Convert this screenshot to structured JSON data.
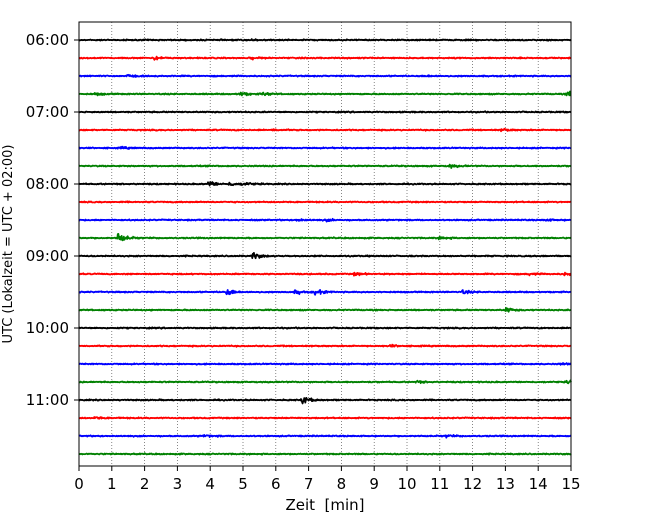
{
  "chart_data": {
    "type": "line",
    "subtype": "helicorder",
    "xlabel": "Zeit  [min]",
    "ylabel": "UTC (Lokalzeit = UTC + 02:00)",
    "xlim": [
      0,
      15
    ],
    "x_ticks": [
      "0",
      "1",
      "2",
      "3",
      "4",
      "5",
      "6",
      "7",
      "8",
      "9",
      "10",
      "11",
      "12",
      "13",
      "14",
      "15"
    ],
    "y_tick_labels": [
      "06:00",
      "07:00",
      "08:00",
      "09:00",
      "10:00",
      "11:00"
    ],
    "start_time": "06:00",
    "trace_interval_min": 15,
    "trace_count": 24,
    "grid": "vertical dotted at each minute",
    "trace_colors": [
      "#000000",
      "#ff0000",
      "#0000ff",
      "#008000"
    ],
    "traces": [
      {
        "start": "06:00",
        "events": [
          {
            "t": 5.3,
            "amp": 0.12
          }
        ]
      },
      {
        "start": "06:15",
        "events": [
          {
            "t": 2.3,
            "amp": 0.3
          },
          {
            "t": 5.2,
            "amp": 0.2
          }
        ]
      },
      {
        "start": "06:30",
        "events": [
          {
            "t": 1.5,
            "amp": 0.18
          },
          {
            "t": 10.6,
            "amp": 0.15
          }
        ]
      },
      {
        "start": "06:45",
        "events": [
          {
            "t": 0.5,
            "amp": 0.2
          },
          {
            "t": 4.9,
            "amp": 0.45
          },
          {
            "t": 5.6,
            "amp": 0.3
          },
          {
            "t": 14.9,
            "amp": 0.55
          }
        ]
      },
      {
        "start": "07:00",
        "events": []
      },
      {
        "start": "07:15",
        "events": [
          {
            "t": 5.9,
            "amp": 0.15
          },
          {
            "t": 12.9,
            "amp": 0.25
          }
        ]
      },
      {
        "start": "07:30",
        "events": [
          {
            "t": 1.3,
            "amp": 0.15
          }
        ]
      },
      {
        "start": "07:45",
        "events": [
          {
            "t": 11.3,
            "amp": 0.3
          }
        ]
      },
      {
        "start": "08:00",
        "events": [
          {
            "t": 3.95,
            "amp": 0.55
          },
          {
            "t": 4.6,
            "amp": 0.3
          },
          {
            "t": 5.0,
            "amp": 0.3
          }
        ]
      },
      {
        "start": "08:15",
        "events": []
      },
      {
        "start": "08:30",
        "events": [
          {
            "t": 6.65,
            "amp": 0.25
          },
          {
            "t": 7.5,
            "amp": 0.2
          },
          {
            "t": 14.2,
            "amp": 0.2
          }
        ]
      },
      {
        "start": "08:45",
        "events": [
          {
            "t": 1.2,
            "amp": 1.0
          },
          {
            "t": 11.0,
            "amp": 0.25
          }
        ]
      },
      {
        "start": "09:00",
        "events": [
          {
            "t": 5.3,
            "amp": 0.6
          }
        ]
      },
      {
        "start": "09:15",
        "events": [
          {
            "t": 8.4,
            "amp": 0.25
          },
          {
            "t": 13.7,
            "amp": 0.2
          },
          {
            "t": 14.8,
            "amp": 0.25
          }
        ]
      },
      {
        "start": "09:30",
        "events": [
          {
            "t": 4.5,
            "amp": 0.6
          },
          {
            "t": 6.6,
            "amp": 0.35
          },
          {
            "t": 7.2,
            "amp": 0.5
          },
          {
            "t": 11.7,
            "amp": 0.3
          }
        ]
      },
      {
        "start": "09:45",
        "events": [
          {
            "t": 13.0,
            "amp": 0.45
          }
        ]
      },
      {
        "start": "10:00",
        "events": []
      },
      {
        "start": "10:15",
        "events": [
          {
            "t": 9.5,
            "amp": 0.15
          }
        ]
      },
      {
        "start": "10:30",
        "events": [
          {
            "t": 14.7,
            "amp": 0.15
          }
        ]
      },
      {
        "start": "10:45",
        "events": [
          {
            "t": 10.3,
            "amp": 0.18
          },
          {
            "t": 14.9,
            "amp": 0.3
          }
        ]
      },
      {
        "start": "11:00",
        "events": [
          {
            "t": 6.8,
            "amp": 0.7
          }
        ]
      },
      {
        "start": "11:15",
        "events": [
          {
            "t": 0.5,
            "amp": 0.2
          }
        ]
      },
      {
        "start": "11:30",
        "events": [
          {
            "t": 3.8,
            "amp": 0.2
          },
          {
            "t": 11.2,
            "amp": 0.2
          }
        ]
      },
      {
        "start": "11:45",
        "events": []
      }
    ]
  }
}
